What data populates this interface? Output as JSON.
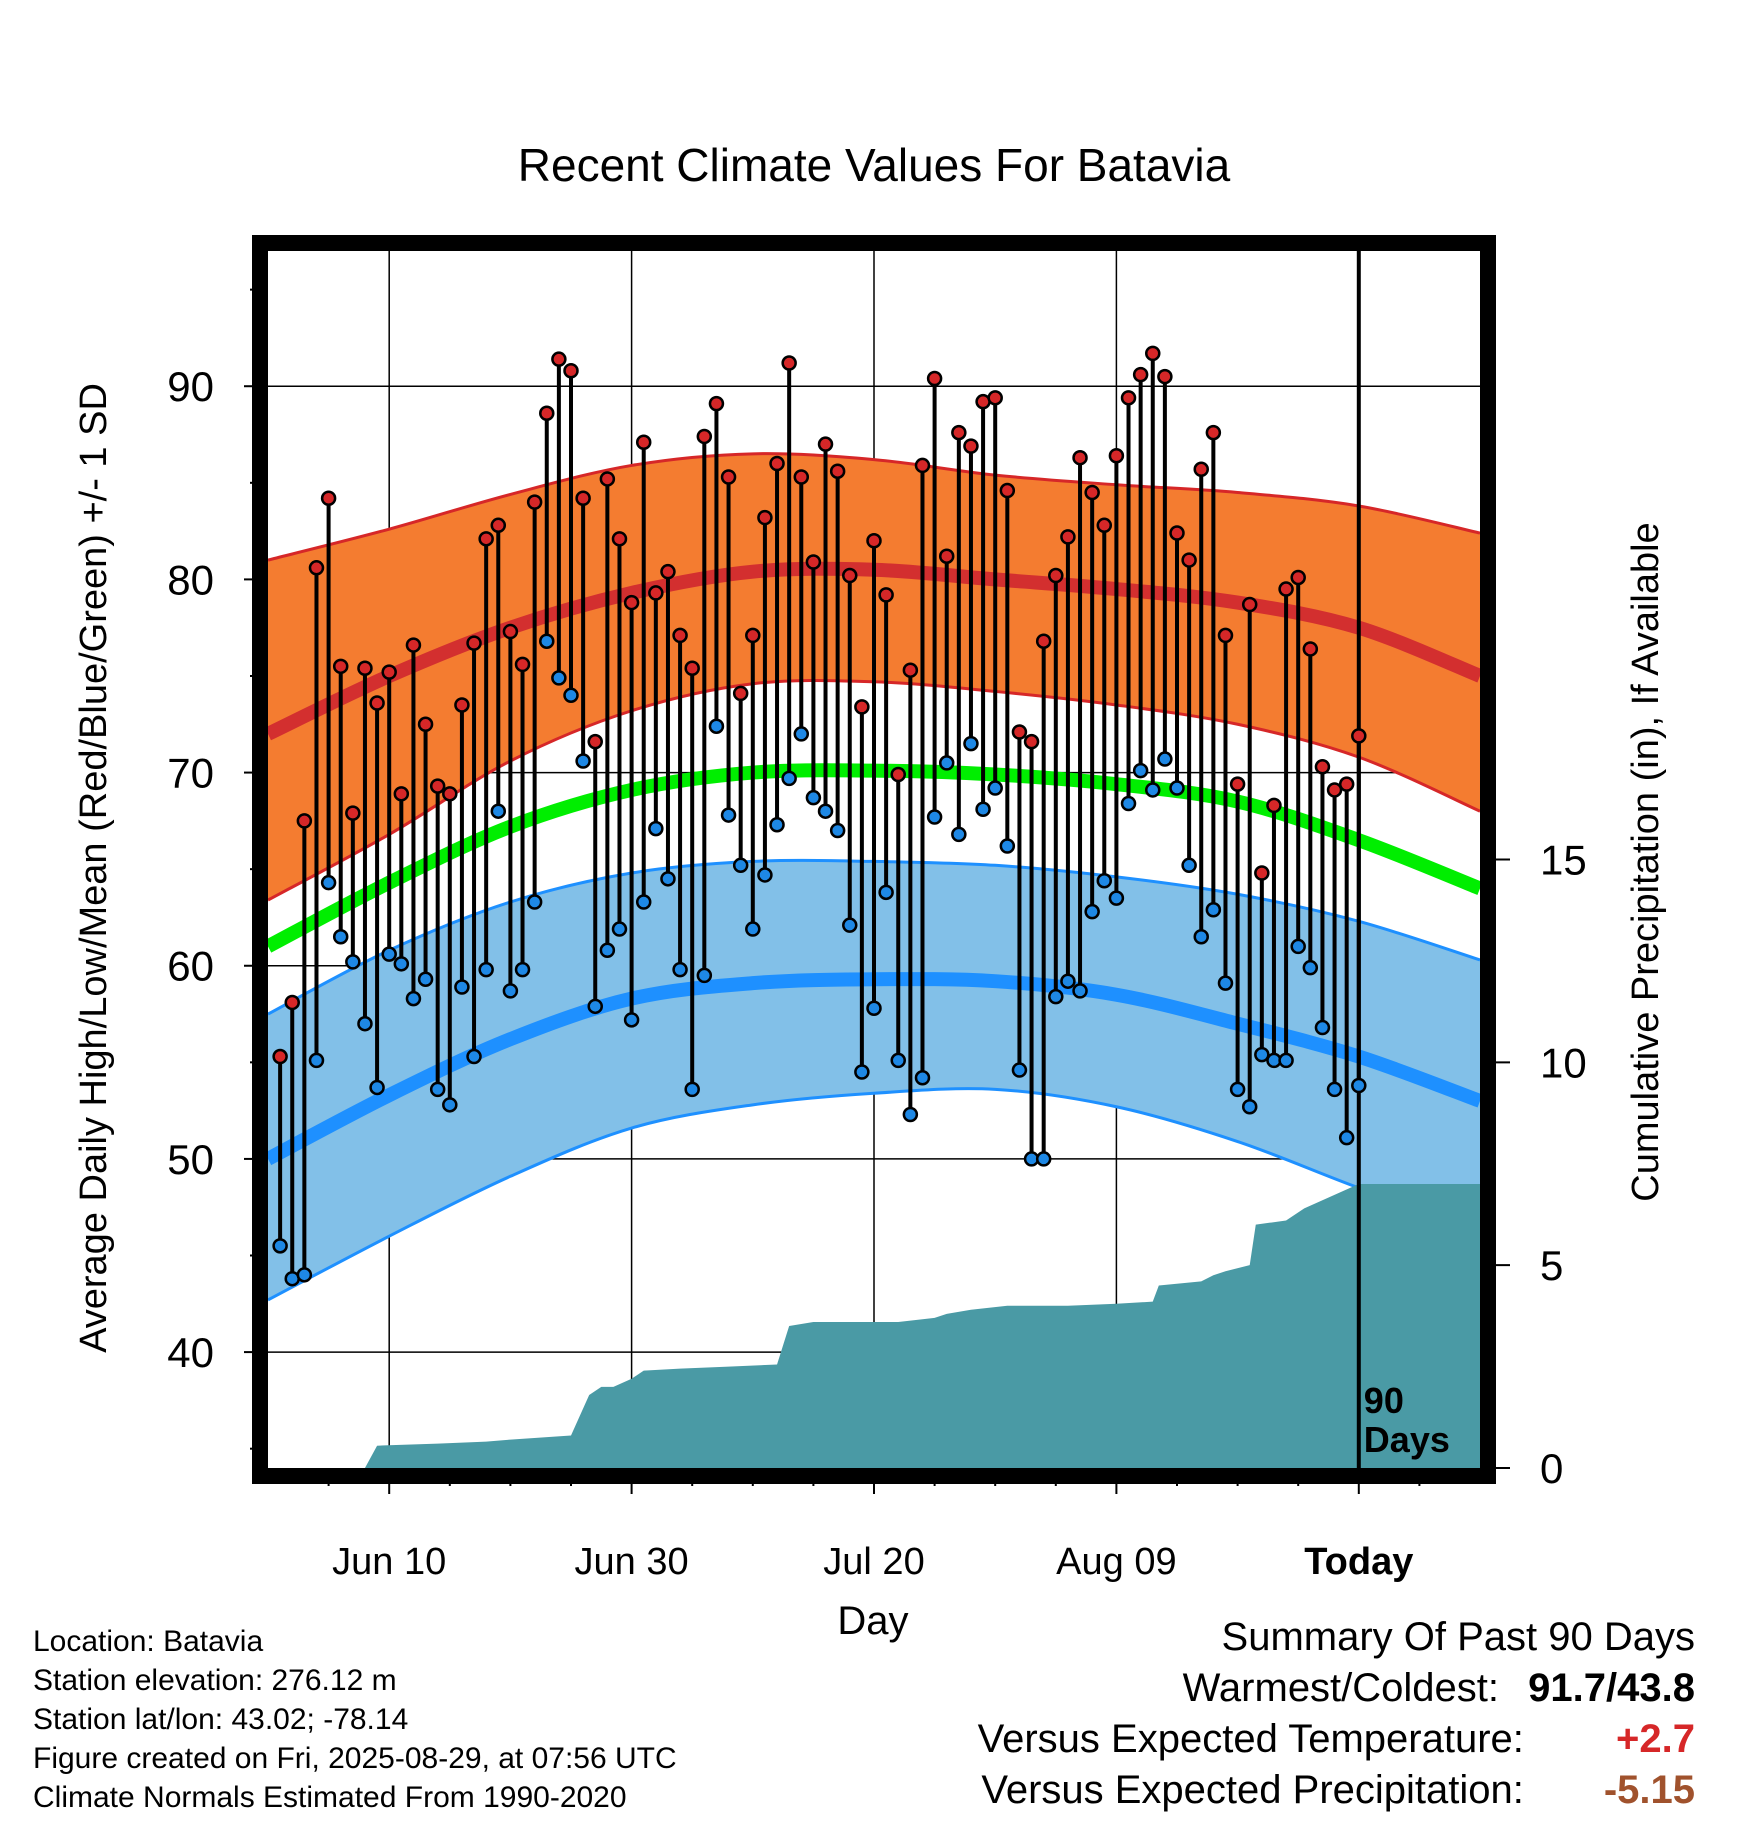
{
  "chart_data": {
    "type": "line",
    "title": "Recent Climate Values For Batavia",
    "xlabel": "Day",
    "ylabel": "Average Daily High/Low/Mean (Red/Blue/Green) +/- 1 SD",
    "y2label": "Cumulative Precipitation (in), If Available",
    "ylim": [
      34,
      97
    ],
    "y2lim": [
      0,
      30
    ],
    "yticks": [
      40,
      50,
      60,
      70,
      80,
      90
    ],
    "y2ticks": [
      0,
      5,
      10,
      15
    ],
    "xtick_labels": [
      "Jun 10",
      "Jun 30",
      "Jul 20",
      "Aug 09",
      "Today"
    ],
    "xtick_days": [
      10,
      30,
      50,
      70,
      90
    ],
    "x_start_day": 0,
    "x_end_day": 100,
    "today_marker_label": [
      "90",
      "Days"
    ],
    "grid": true,
    "series": [
      {
        "name": "Daily High",
        "color": "#d62728",
        "values": [
          55.3,
          58.1,
          67.5,
          80.6,
          84.2,
          75.5,
          67.9,
          75.4,
          73.6,
          75.2,
          68.9,
          76.6,
          72.5,
          69.3,
          68.9,
          73.5,
          76.7,
          82.1,
          82.8,
          77.3,
          75.6,
          84.0,
          88.6,
          91.4,
          90.8,
          84.2,
          71.6,
          85.2,
          82.1,
          78.8,
          87.1,
          79.3,
          80.4,
          77.1,
          75.4,
          87.4,
          89.1,
          85.3,
          74.1,
          77.1,
          83.2,
          86.0,
          91.2,
          85.3,
          80.9,
          87.0,
          85.6,
          80.2,
          73.4,
          82.0,
          79.2,
          69.9,
          75.3,
          85.9,
          90.4,
          81.2,
          87.6,
          86.9,
          89.2,
          89.4,
          84.6,
          72.1,
          71.6,
          76.8,
          80.2,
          82.2,
          86.3,
          84.5,
          82.8,
          86.4,
          89.4,
          90.6,
          91.7,
          90.5,
          82.4,
          81.0,
          85.7,
          87.6,
          77.1,
          69.4,
          78.7,
          64.8,
          68.3,
          79.5,
          80.1,
          76.4,
          70.3,
          69.1,
          69.4,
          71.9
        ]
      },
      {
        "name": "Daily Low",
        "color": "#1e88e5",
        "values": [
          45.5,
          43.8,
          44.0,
          55.1,
          64.3,
          61.5,
          60.2,
          57.0,
          53.7,
          60.6,
          60.1,
          58.3,
          59.3,
          53.6,
          52.8,
          58.9,
          55.3,
          59.8,
          68.0,
          58.7,
          59.8,
          63.3,
          76.8,
          74.9,
          74.0,
          70.6,
          57.9,
          60.8,
          61.9,
          57.2,
          63.3,
          67.1,
          64.5,
          59.8,
          53.6,
          59.5,
          72.4,
          67.8,
          65.2,
          61.9,
          64.7,
          67.3,
          69.7,
          72.0,
          68.7,
          68.0,
          67.0,
          62.1,
          54.5,
          57.8,
          63.8,
          55.1,
          52.3,
          54.2,
          67.7,
          70.5,
          66.8,
          71.5,
          68.1,
          69.2,
          66.2,
          54.6,
          50.0,
          50.0,
          58.4,
          59.2,
          58.7,
          62.8,
          64.4,
          63.5,
          68.4,
          70.1,
          69.1,
          70.7,
          69.2,
          65.2,
          61.5,
          62.9,
          59.1,
          53.6,
          52.7,
          55.4,
          55.1,
          55.1,
          61.0,
          59.9,
          56.8,
          53.6,
          51.1,
          53.8
        ]
      },
      {
        "name": "Normal High",
        "points": [
          [
            0,
            72.0
          ],
          [
            10,
            75.0
          ],
          [
            20,
            77.5
          ],
          [
            30,
            79.3
          ],
          [
            40,
            80.4
          ],
          [
            50,
            80.5
          ],
          [
            60,
            80.0
          ],
          [
            70,
            79.5
          ],
          [
            80,
            78.8
          ],
          [
            90,
            77.5
          ],
          [
            100,
            75.0
          ]
        ],
        "color": "#d32f2f"
      },
      {
        "name": "Normal High +/- 1 SD",
        "upper": [
          [
            0,
            81.0
          ],
          [
            10,
            82.6
          ],
          [
            20,
            84.4
          ],
          [
            30,
            85.9
          ],
          [
            40,
            86.5
          ],
          [
            50,
            86.2
          ],
          [
            60,
            85.4
          ],
          [
            70,
            84.9
          ],
          [
            80,
            84.5
          ],
          [
            90,
            83.8
          ],
          [
            100,
            82.4
          ]
        ],
        "lower": [
          [
            0,
            63.4
          ],
          [
            10,
            66.8
          ],
          [
            20,
            70.6
          ],
          [
            30,
            73.2
          ],
          [
            40,
            74.6
          ],
          [
            50,
            74.7
          ],
          [
            60,
            74.2
          ],
          [
            70,
            73.5
          ],
          [
            80,
            72.5
          ],
          [
            90,
            70.8
          ],
          [
            100,
            68.0
          ]
        ],
        "color": "#f47c30"
      },
      {
        "name": "Normal Mean",
        "points": [
          [
            0,
            61.0
          ],
          [
            10,
            64.3
          ],
          [
            20,
            67.2
          ],
          [
            30,
            69.1
          ],
          [
            40,
            70.0
          ],
          [
            50,
            70.1
          ],
          [
            60,
            69.9
          ],
          [
            70,
            69.4
          ],
          [
            80,
            68.5
          ],
          [
            90,
            66.5
          ],
          [
            100,
            64.0
          ]
        ],
        "color": "#00ee00"
      },
      {
        "name": "Normal Low",
        "points": [
          [
            0,
            50.0
          ],
          [
            10,
            53.3
          ],
          [
            20,
            56.2
          ],
          [
            30,
            58.3
          ],
          [
            40,
            59.1
          ],
          [
            50,
            59.3
          ],
          [
            60,
            59.2
          ],
          [
            70,
            58.5
          ],
          [
            80,
            57.0
          ],
          [
            90,
            55.3
          ],
          [
            100,
            53.0
          ]
        ],
        "color": "#1e90ff"
      },
      {
        "name": "Normal Low +/- 1 SD",
        "upper": [
          [
            0,
            57.5
          ],
          [
            10,
            60.8
          ],
          [
            20,
            63.3
          ],
          [
            30,
            64.8
          ],
          [
            40,
            65.4
          ],
          [
            50,
            65.4
          ],
          [
            60,
            65.2
          ],
          [
            70,
            64.6
          ],
          [
            80,
            63.7
          ],
          [
            90,
            62.3
          ],
          [
            100,
            60.3
          ]
        ],
        "lower": [
          [
            0,
            42.7
          ],
          [
            10,
            46.0
          ],
          [
            20,
            49.1
          ],
          [
            30,
            51.6
          ],
          [
            40,
            52.8
          ],
          [
            50,
            53.4
          ],
          [
            60,
            53.6
          ],
          [
            70,
            52.7
          ],
          [
            80,
            50.9
          ],
          [
            90,
            48.5
          ],
          [
            100,
            46.3
          ]
        ],
        "color": "#82c0e8"
      },
      {
        "name": "Cumulative Precipitation",
        "color": "#4a9aa5",
        "points": [
          [
            0,
            0
          ],
          [
            8.0,
            0
          ],
          [
            9.0,
            0.55
          ],
          [
            14.0,
            0.6
          ],
          [
            18.0,
            0.65
          ],
          [
            20.0,
            0.7
          ],
          [
            25.0,
            0.8
          ],
          [
            26.5,
            1.8
          ],
          [
            27.5,
            2.0
          ],
          [
            28.5,
            2.0
          ],
          [
            30.0,
            2.2
          ],
          [
            31.0,
            2.4
          ],
          [
            34.0,
            2.45
          ],
          [
            38.0,
            2.5
          ],
          [
            42.0,
            2.55
          ],
          [
            43.0,
            3.5
          ],
          [
            45.0,
            3.6
          ],
          [
            48.0,
            3.6
          ],
          [
            52.0,
            3.6
          ],
          [
            55.0,
            3.7
          ],
          [
            56.0,
            3.8
          ],
          [
            58.0,
            3.9
          ],
          [
            61.0,
            4.0
          ],
          [
            66.0,
            4.0
          ],
          [
            70.0,
            4.05
          ],
          [
            73.0,
            4.1
          ],
          [
            73.5,
            4.5
          ],
          [
            77.0,
            4.6
          ],
          [
            78.0,
            4.75
          ],
          [
            79.0,
            4.85
          ],
          [
            81.0,
            5.0
          ],
          [
            81.5,
            6.0
          ],
          [
            84.0,
            6.1
          ],
          [
            85.5,
            6.4
          ],
          [
            87.0,
            6.6
          ],
          [
            88.5,
            6.8
          ],
          [
            90.0,
            7.0
          ],
          [
            100,
            7.0
          ]
        ]
      }
    ]
  },
  "info": {
    "location": "Location: Batavia",
    "elevation": "Station elevation: 276.12 m",
    "latlon": "Station lat/lon: 43.02; -78.14",
    "created": "Figure created on Fri, 2025-08-29, at 07:56 UTC",
    "normals": "Climate Normals Estimated From 1990-2020"
  },
  "summary": {
    "heading": "Summary Of Past 90 Days",
    "warm_cold_label": "Warmest/Coldest:",
    "warmest": "91.7",
    "sep": "/",
    "coldest": "43.8",
    "temp_label": "Versus Expected Temperature:",
    "temp_value": "+2.7",
    "temp_color": "#d62728",
    "precip_label": "Versus Expected Precipitation:",
    "precip_value": "-5.15",
    "precip_color": "#a0522d"
  }
}
